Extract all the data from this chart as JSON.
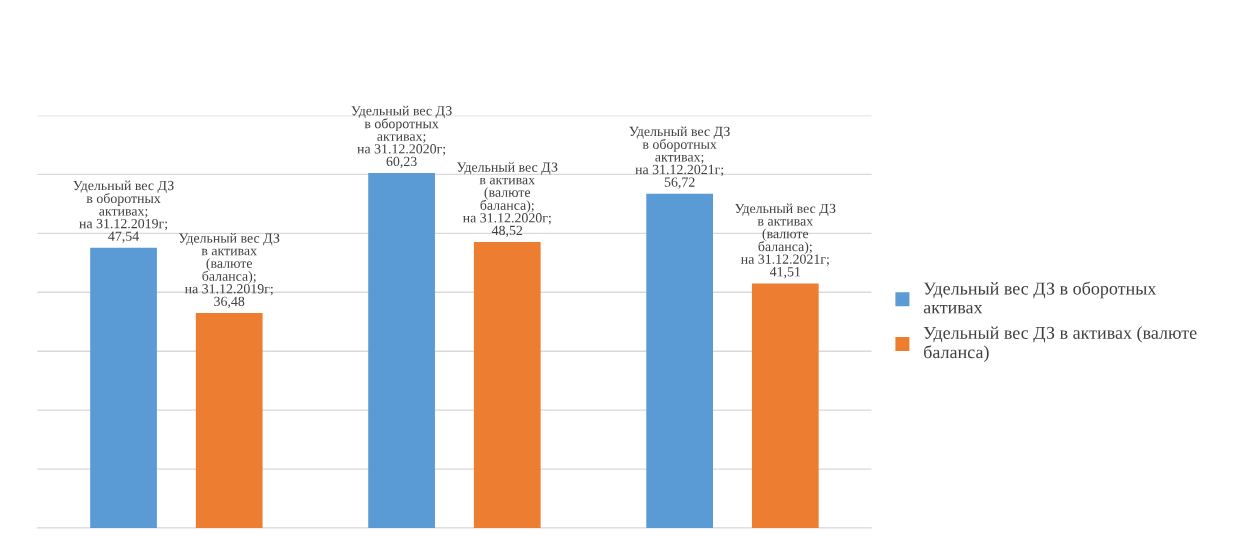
{
  "chart_data": {
    "type": "bar",
    "categories": [
      null,
      null,
      null
    ],
    "series": [
      {
        "name": "Удельный вес ДЗ в оборотных\nактивах",
        "color": "#5b9bd5",
        "values": [
          47.54,
          60.23,
          56.72
        ],
        "value_labels": [
          "Удельный вес ДЗ\nв оборотных\nактивах;\nна 31.12.2019г;\n47,54",
          "Удельный вес ДЗ\nв оборотных\nактивах;\nна 31.12.2020г;\n60,23",
          "Удельный вес ДЗ\nв оборотных\nактивах;\nна 31.12.2021г;\n56,72"
        ]
      },
      {
        "name": "Удельный вес ДЗ в активах (валюте\nбаланса)",
        "color": "#ed7d31",
        "values": [
          36.48,
          48.52,
          41.51
        ],
        "value_labels": [
          "Удельный вес ДЗ\nв активах\n(валюте\nбаланса);\nна 31.12.2019г;\n36,48",
          "Удельный вес ДЗ\nв активах\n(валюте\nбаланса);\nна 31.12.2020г;\n48,52",
          "Удельный вес ДЗ\nв активах\n(валюте\nбаланса);\nна 31.12.2021г;\n41,51"
        ]
      }
    ],
    "ylim": [
      0,
      70
    ],
    "yticks": [
      {
        "value": 0,
        "label": null
      },
      {
        "value": 10,
        "label": null
      },
      {
        "value": 20,
        "label": null
      },
      {
        "value": 30,
        "label": null
      },
      {
        "value": 40,
        "label": null
      },
      {
        "value": 50,
        "label": null
      },
      {
        "value": 60,
        "label": null
      },
      {
        "value": 70,
        "label": null
      }
    ],
    "grid": "y",
    "legend": "right"
  }
}
